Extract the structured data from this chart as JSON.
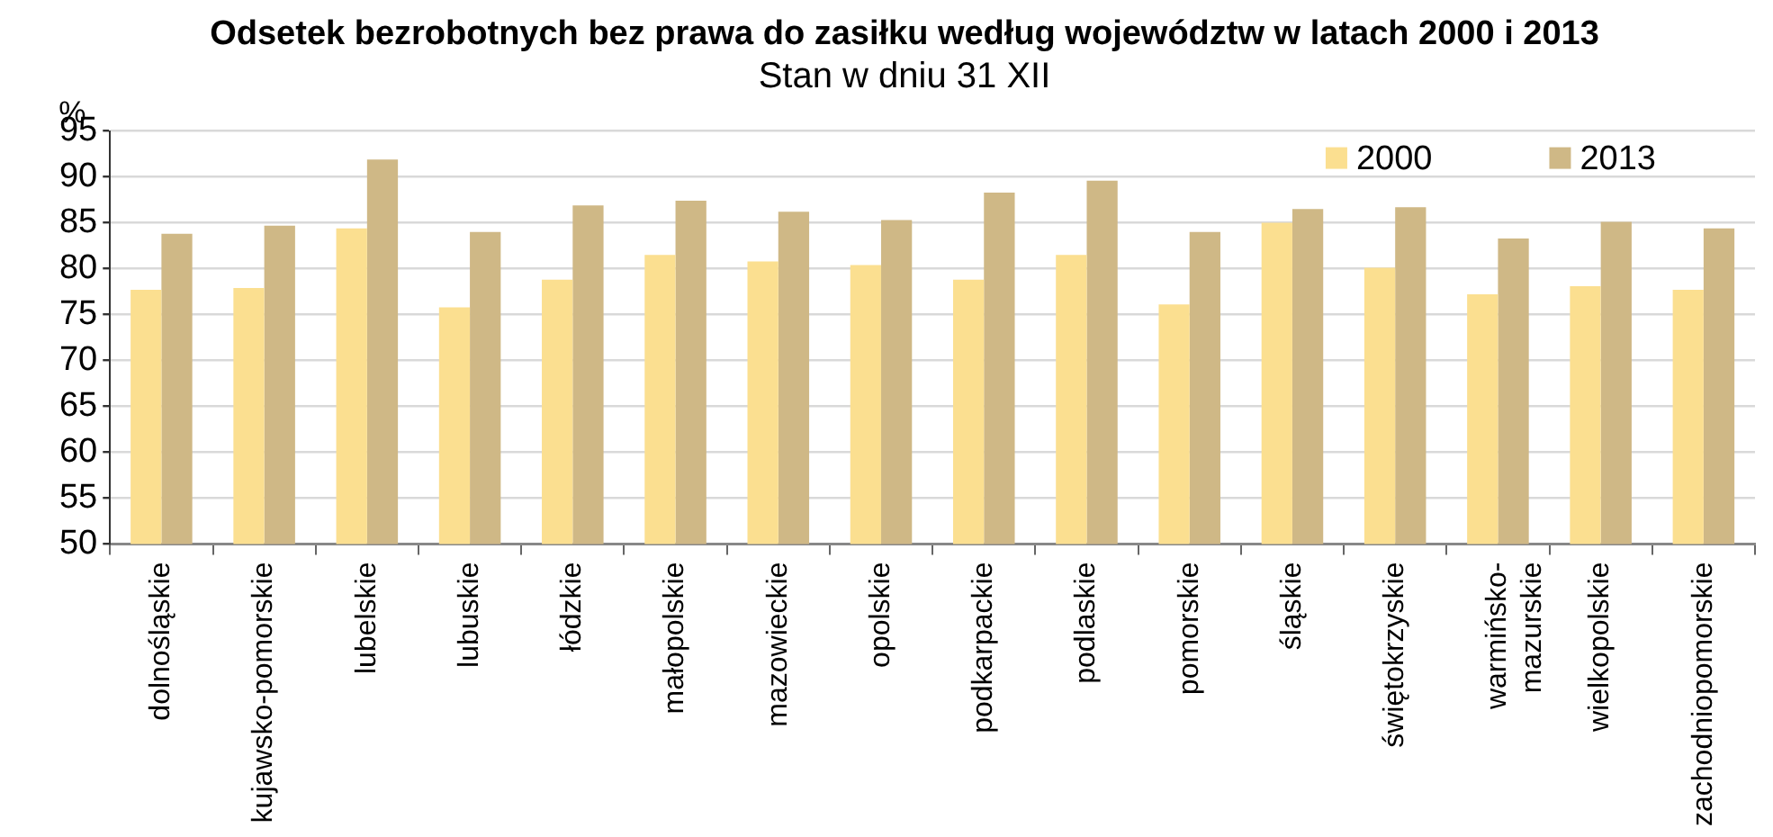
{
  "chart_data": {
    "type": "bar",
    "title": "Odsetek bezrobotnych bez prawa do zasiłku według województw w latach 2000 i 2013",
    "subtitle": "Stan w dniu 31 XII",
    "ylabel": "%",
    "categories": [
      "dolnośląskie",
      "kujawsko-pomorskie",
      "lubelskie",
      "lubuskie",
      "łódzkie",
      "małopolskie",
      "mazowieckie",
      "opolskie",
      "podkarpackie",
      "podlaskie",
      "pomorskie",
      "śląskie",
      "świętokrzyskie",
      "warmińsko-mazurskie",
      "wielkopolskie",
      "zachodniopomorskie"
    ],
    "series": [
      {
        "name": "2000",
        "color": "#fbdf90",
        "values": [
          77.7,
          77.9,
          84.4,
          75.8,
          78.8,
          81.5,
          80.8,
          80.4,
          78.8,
          81.5,
          76.1,
          85.0,
          80.1,
          77.2,
          78.1,
          77.7
        ]
      },
      {
        "name": "2013",
        "color": "#cfb886",
        "values": [
          83.8,
          84.7,
          91.9,
          84.0,
          86.9,
          87.4,
          86.2,
          85.3,
          88.3,
          89.6,
          84.0,
          86.5,
          86.7,
          83.3,
          85.1,
          84.4
        ]
      }
    ],
    "ylim": [
      50,
      95
    ],
    "yticks": [
      50,
      55,
      60,
      65,
      70,
      75,
      80,
      85,
      90,
      95
    ],
    "grid": "y",
    "legend": "top right"
  }
}
